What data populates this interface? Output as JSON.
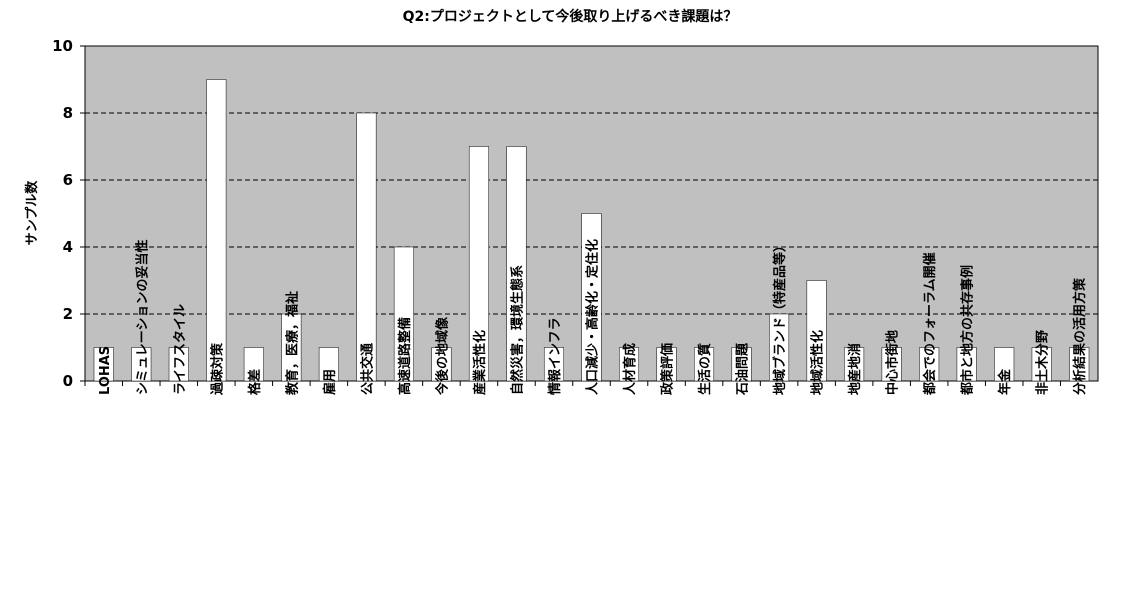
{
  "chart_data": {
    "type": "bar",
    "title": "Q2:プロジェクトとして今後取り上げるべき課題は？",
    "ylabel": "サンプル数",
    "xlabel": "",
    "ylim": [
      0,
      10
    ],
    "yticks": [
      0,
      2,
      4,
      6,
      8,
      10
    ],
    "grid": "horizontal-dashed",
    "legend": "none",
    "categories": [
      "LOHAS",
      "シミュレーションの妥当性",
      "ライフスタイル",
      "過疎対策",
      "格差",
      "教育，医療，福祉",
      "雇用",
      "公共交通",
      "高速道路整備",
      "今後の地域像",
      "産業活性化",
      "自然災害，環境生態系",
      "情報インフラ",
      "人口減少・高齢化・定住化",
      "人材育成",
      "政策評価",
      "生活の質",
      "石油問題",
      "地域ブランド（特産品等）",
      "地域活性化",
      "地産地消",
      "中心市街地",
      "都会でのフォーラム開催",
      "都市と地方の共存事例",
      "年金",
      "非土木分野",
      "分析結果の活用方策"
    ],
    "values": [
      1,
      1,
      1,
      9,
      1,
      2,
      1,
      8,
      4,
      1,
      7,
      7,
      1,
      5,
      1,
      1,
      1,
      1,
      2,
      3,
      1,
      1,
      1,
      1,
      1,
      1,
      1
    ],
    "colors": {
      "plot_bg": "#c0c0c0",
      "bar": "#ffffff",
      "bar_edge": "#000000",
      "grid": "#000000"
    }
  }
}
